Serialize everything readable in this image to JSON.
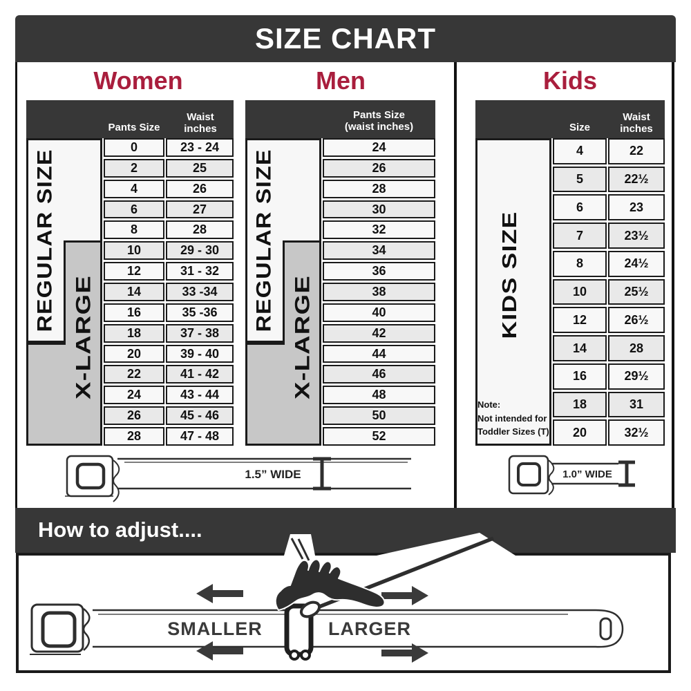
{
  "title": "SIZE CHART",
  "colors": {
    "accent": "#A91E3D",
    "header_dark": "#373737",
    "xlarge_gray": "#C7C7C7"
  },
  "sections": {
    "women": {
      "title": "Women",
      "columns": [
        "Pants Size",
        "Waist\ninches"
      ],
      "size_groups": [
        {
          "label": "REGULAR SIZE"
        },
        {
          "label": "X-LARGE"
        }
      ],
      "rows": [
        {
          "size": "0",
          "waist": "23 - 24"
        },
        {
          "size": "2",
          "waist": "25"
        },
        {
          "size": "4",
          "waist": "26"
        },
        {
          "size": "6",
          "waist": "27"
        },
        {
          "size": "8",
          "waist": "28"
        },
        {
          "size": "10",
          "waist": "29 - 30"
        },
        {
          "size": "12",
          "waist": "31 - 32"
        },
        {
          "size": "14",
          "waist": "33 -34"
        },
        {
          "size": "16",
          "waist": "35 -36"
        },
        {
          "size": "18",
          "waist": "37 - 38"
        },
        {
          "size": "20",
          "waist": "39 - 40"
        },
        {
          "size": "22",
          "waist": "41 - 42"
        },
        {
          "size": "24",
          "waist": "43 - 44"
        },
        {
          "size": "26",
          "waist": "45 - 46"
        },
        {
          "size": "28",
          "waist": "47 - 48"
        }
      ]
    },
    "men": {
      "title": "Men",
      "columns": [
        "Pants Size\n(waist inches)"
      ],
      "size_groups": [
        {
          "label": "REGULAR SIZE"
        },
        {
          "label": "X-LARGE"
        }
      ],
      "rows": [
        "24",
        "26",
        "28",
        "30",
        "32",
        "34",
        "36",
        "38",
        "40",
        "42",
        "44",
        "46",
        "48",
        "50",
        "52"
      ]
    },
    "kids": {
      "title": "Kids",
      "columns": [
        "Size",
        "Waist\ninches"
      ],
      "size_group": "KIDS SIZE",
      "note": "Note:\nNot intended for\nToddler Sizes (T)",
      "rows": [
        {
          "size": "4",
          "waist": "22"
        },
        {
          "size": "5",
          "waist": "22½"
        },
        {
          "size": "6",
          "waist": "23"
        },
        {
          "size": "7",
          "waist": "23½"
        },
        {
          "size": "8",
          "waist": "24½"
        },
        {
          "size": "10",
          "waist": "25½"
        },
        {
          "size": "12",
          "waist": "26½"
        },
        {
          "size": "14",
          "waist": "28"
        },
        {
          "size": "16",
          "waist": "29½"
        },
        {
          "size": "18",
          "waist": "31"
        },
        {
          "size": "20",
          "waist": "32½"
        }
      ]
    },
    "belts": {
      "adult": "1.5” WIDE",
      "kids": "1.0” WIDE"
    }
  },
  "adjust": {
    "title": "How to adjust....",
    "smaller": "SMALLER",
    "larger": "LARGER"
  }
}
